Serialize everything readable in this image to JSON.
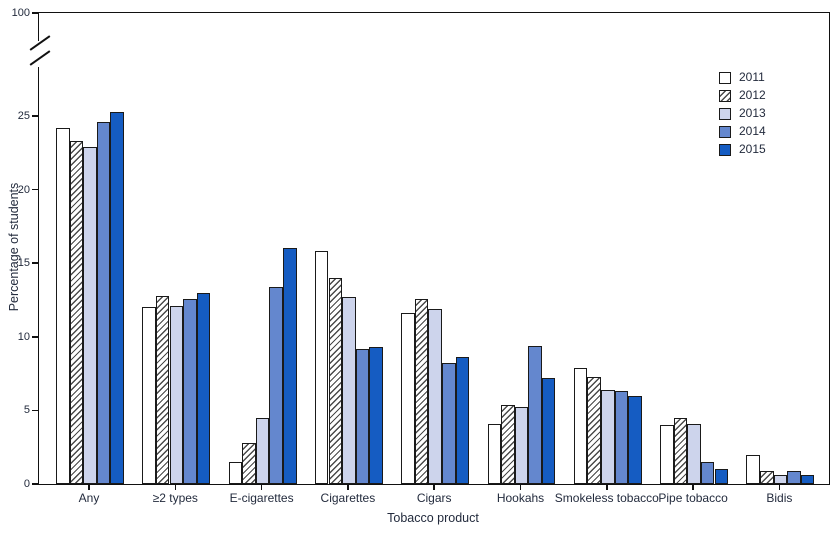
{
  "chart_data": {
    "type": "bar",
    "title": "",
    "xlabel": "Tobacco product",
    "ylabel": "Percentage of students",
    "categories": [
      "Any",
      "≥2 types",
      "E-cigarettes",
      "Cigarettes",
      "Cigars",
      "Hookahs",
      "Smokeless tobacco",
      "Pipe tobacco",
      "Bidis"
    ],
    "series": [
      {
        "name": "2011",
        "fill": "#ffffff",
        "hatch": false,
        "values": [
          24.2,
          12.0,
          1.5,
          15.8,
          11.6,
          4.1,
          7.9,
          4.0,
          2.0
        ]
      },
      {
        "name": "2012",
        "fill": "#ffffff",
        "hatch": true,
        "values": [
          23.3,
          12.8,
          2.8,
          14.0,
          12.6,
          5.4,
          7.3,
          4.5,
          0.9
        ]
      },
      {
        "name": "2013",
        "fill": "#cdd4ec",
        "hatch": false,
        "values": [
          22.9,
          12.1,
          4.5,
          12.7,
          11.9,
          5.2,
          6.4,
          4.1,
          0.6
        ]
      },
      {
        "name": "2014",
        "fill": "#6487ce",
        "hatch": false,
        "values": [
          24.6,
          12.6,
          13.4,
          9.2,
          8.2,
          9.4,
          6.3,
          1.5,
          0.9
        ]
      },
      {
        "name": "2015",
        "fill": "#155cc2",
        "hatch": false,
        "values": [
          25.3,
          13.0,
          16.0,
          9.3,
          8.6,
          7.2,
          6.0,
          1.0,
          0.6
        ]
      }
    ],
    "y_ticks": [
      0,
      5,
      10,
      15,
      20,
      25
    ],
    "y_top_tick": 100,
    "axis_break": true,
    "ylim_linear": [
      0,
      25
    ],
    "legend_position": "top-right",
    "grid": false,
    "colors": {
      "bar_border": "#1a1a1a",
      "hatch_line": "#4a4a4a",
      "axis": "#111111",
      "text": "#232b3d"
    }
  }
}
